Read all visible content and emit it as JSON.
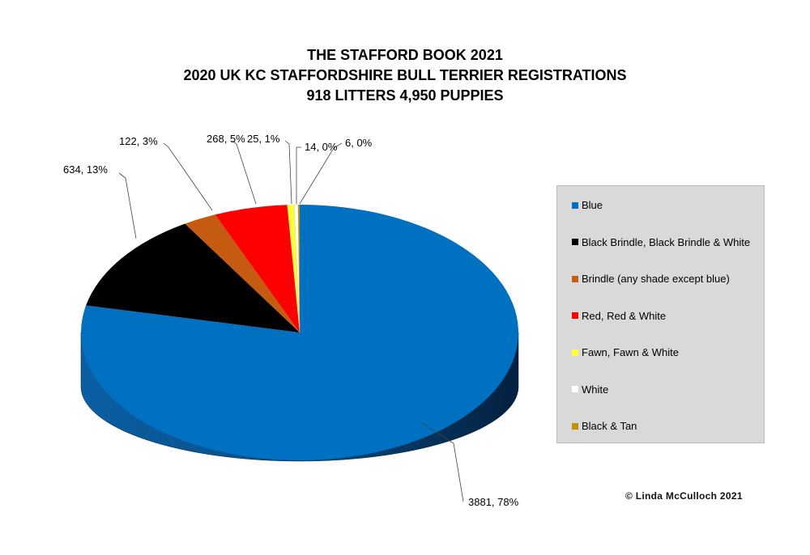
{
  "title": {
    "line1": "THE STAFFORD BOOK 2021",
    "line2": "2020 UK KC STAFFORDSHIRE BULL TERRIER REGISTRATIONS",
    "line3": "918 LITTERS 4,950 PUPPIES"
  },
  "credit": "© Linda McCulloch 2021",
  "chart_data": {
    "type": "pie",
    "style": "3d",
    "legend_position": "right",
    "slices": [
      {
        "name": "Blue",
        "value": 3881,
        "percent": 78,
        "label": "3881, 78%",
        "color": "#0070c0"
      },
      {
        "name": "Black Brindle, Black Brindle & White",
        "value": 634,
        "percent": 13,
        "label": "634, 13%",
        "color": "#000000"
      },
      {
        "name": "Brindle (any shade except blue)",
        "value": 122,
        "percent": 3,
        "label": "122, 3%",
        "color": "#c55a11"
      },
      {
        "name": "Red, Red & White",
        "value": 268,
        "percent": 5,
        "label": "268, 5%",
        "color": "#ff0000"
      },
      {
        "name": "Fawn, Fawn & White",
        "value": 25,
        "percent": 1,
        "label": "25, 1%",
        "color": "#ffff33"
      },
      {
        "name": "White",
        "value": 14,
        "percent": 0,
        "label": "14, 0%",
        "color": "#ffffff"
      },
      {
        "name": "Black & Tan",
        "value": 6,
        "percent": 0,
        "label": "6, 0%",
        "color": "#bf9000"
      }
    ]
  }
}
